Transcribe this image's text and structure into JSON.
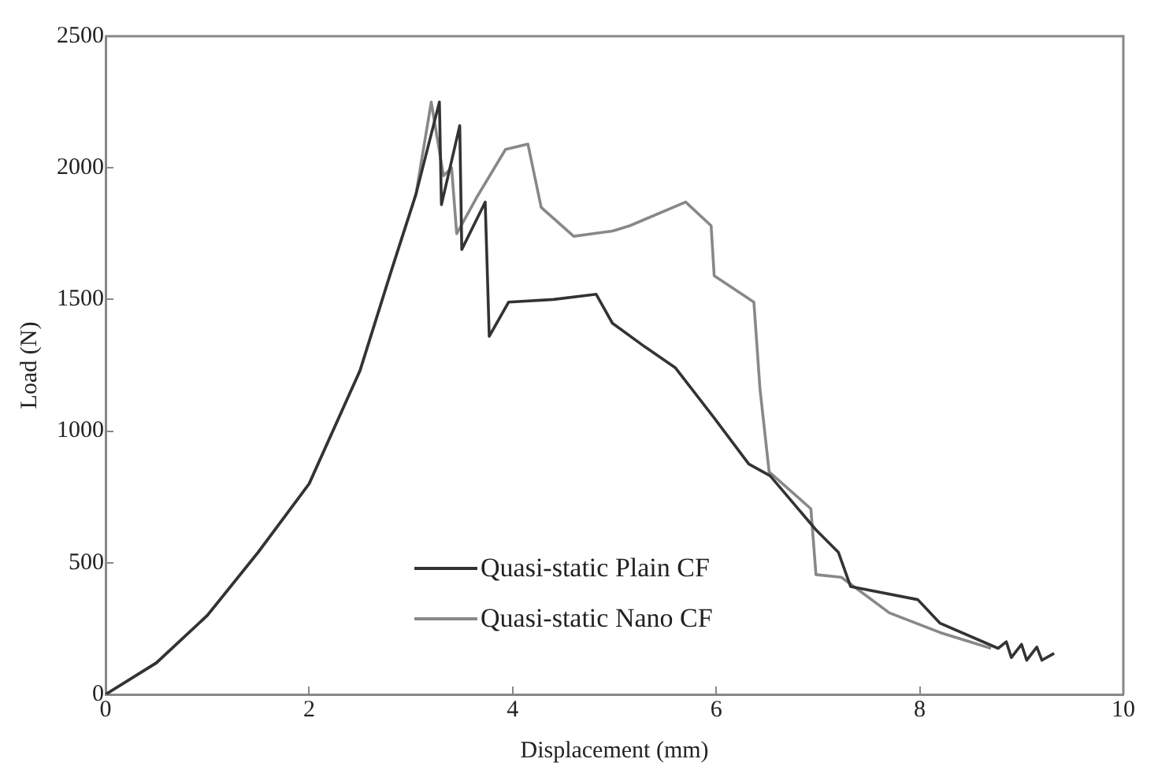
{
  "chart_data": {
    "type": "line",
    "xlabel": "Displacement (mm)",
    "ylabel": "Load (N)",
    "xlim": [
      0,
      10
    ],
    "xticks": [
      0,
      2,
      4,
      6,
      8,
      10
    ],
    "ylim": [
      0,
      2500
    ],
    "yticks": [
      0,
      500,
      1000,
      1500,
      2000,
      2500
    ],
    "grid": false,
    "legend": "bottom left",
    "marker": "none",
    "line_style": "solid",
    "series": [
      {
        "name": "Quasi-static Plain CF",
        "color": "#333333",
        "x": [
          0,
          0.5,
          1,
          1.5,
          2,
          2.5,
          2.8,
          3.05,
          3.28,
          3.3,
          3.48,
          3.5,
          3.73,
          3.77,
          3.96,
          4.4,
          4.82,
          4.98,
          5.3,
          5.6,
          5.98,
          6.32,
          6.53,
          6.98,
          7.2,
          7.32,
          7.98,
          8.2,
          8.77,
          8.85,
          8.9,
          9,
          9.05,
          9.15,
          9.2,
          9.32
        ],
        "values": [
          0,
          120,
          300,
          540,
          800,
          1230,
          1600,
          1900,
          2250,
          1860,
          2160,
          1690,
          1870,
          1360,
          1490,
          1500,
          1520,
          1410,
          1320,
          1240,
          1050,
          875,
          830,
          625,
          540,
          410,
          360,
          270,
          175,
          200,
          140,
          190,
          130,
          180,
          130,
          156
        ]
      },
      {
        "name": "Quasi-static Nano CF",
        "color": "#888888",
        "x": [
          0,
          0.5,
          1,
          1.5,
          2,
          2.5,
          2.8,
          3.05,
          3.2,
          3.32,
          3.4,
          3.45,
          3.65,
          3.93,
          4.15,
          4.28,
          4.6,
          4.98,
          5.15,
          5.7,
          5.95,
          5.98,
          6.37,
          6.43,
          6.52,
          6.93,
          6.98,
          7.23,
          7.7,
          8.2,
          8.7
        ],
        "values": [
          0,
          120,
          300,
          540,
          800,
          1230,
          1600,
          1900,
          2250,
          1970,
          2000,
          1750,
          1890,
          2070,
          2090,
          1850,
          1740,
          1760,
          1780,
          1870,
          1780,
          1590,
          1490,
          1160,
          845,
          705,
          455,
          445,
          310,
          235,
          175
        ]
      }
    ]
  }
}
